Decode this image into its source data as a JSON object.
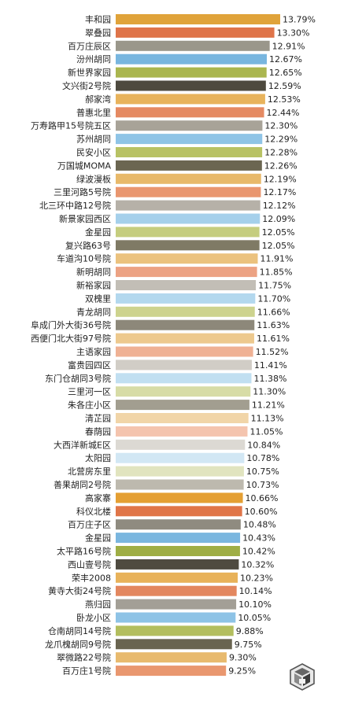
{
  "chart_data": {
    "type": "bar",
    "orientation": "horizontal",
    "categories": [
      "丰和园",
      "翠叠园",
      "百万庄辰区",
      "汾州胡同",
      "新世界家园",
      "文兴街2号院",
      "郝家湾",
      "普惠北里",
      "万寿路甲15号院五区",
      "苏州胡同",
      "民安小区",
      "万国城MOMA",
      "绿波漫板",
      "三里河路5号院",
      "北三环中路12号院",
      "新景家园西区",
      "金星园",
      "复兴路63号",
      "车道沟10号院",
      "新明胡同",
      "新裕家园",
      "双槐里",
      "青龙胡同",
      "阜成门外大街36号院",
      "西便门北大街97号院",
      "主语家园",
      "富贵园四区",
      "东门仓胡同3号院",
      "三里河一区",
      "朱各庄小区",
      "清芷园",
      "春荫园",
      "大西洋新城E区",
      "太阳园",
      "北营房东里",
      "善果胡同2号院",
      "高家寨",
      "科仪北楼",
      "百万庄子区",
      "金星园",
      "太平路16号院",
      "西山壹号院",
      "荣丰2008",
      "黄寺大街24号院",
      "燕归园",
      "卧龙小区",
      "仓南胡同14号院",
      "龙爪槐胡同9号院",
      "翠微路22号院",
      "百万庄1号院"
    ],
    "values": [
      13.79,
      13.3,
      12.91,
      12.67,
      12.65,
      12.59,
      12.53,
      12.44,
      12.3,
      12.29,
      12.28,
      12.26,
      12.19,
      12.17,
      12.12,
      12.09,
      12.05,
      12.05,
      11.91,
      11.85,
      11.75,
      11.7,
      11.66,
      11.63,
      11.61,
      11.52,
      11.41,
      11.38,
      11.3,
      11.21,
      11.13,
      11.05,
      10.84,
      10.78,
      10.75,
      10.73,
      10.66,
      10.6,
      10.48,
      10.43,
      10.42,
      10.32,
      10.23,
      10.14,
      10.1,
      10.05,
      9.88,
      9.75,
      9.3,
      9.25
    ],
    "labels": [
      "13.79%",
      "13.30%",
      "12.91%",
      "12.67%",
      "12.65%",
      "12.59%",
      "12.53%",
      "12.44%",
      "12.30%",
      "12.29%",
      "12.28%",
      "12.26%",
      "12.19%",
      "12.17%",
      "12.12%",
      "12.09%",
      "12.05%",
      "12.05%",
      "11.91%",
      "11.85%",
      "11.75%",
      "11.70%",
      "11.66%",
      "11.63%",
      "11.61%",
      "11.52%",
      "11.41%",
      "11.38%",
      "11.30%",
      "11.21%",
      "11.13%",
      "11.05%",
      "10.84%",
      "10.78%",
      "10.75%",
      "10.73%",
      "10.66%",
      "10.60%",
      "10.48%",
      "10.43%",
      "10.42%",
      "10.32%",
      "10.23%",
      "10.14%",
      "10.10%",
      "10.05%",
      "9.88%",
      "9.75%",
      "9.30%",
      "9.25%"
    ],
    "colors": [
      "#E0A33A",
      "#DF7449",
      "#9A978B",
      "#78B6DF",
      "#AAB64F",
      "#4E4A3F",
      "#E8B35C",
      "#E58A62",
      "#A8A398",
      "#8FC4E6",
      "#B8C264",
      "#6B6651",
      "#E8B96A",
      "#E9966F",
      "#B6B1A8",
      "#A5D0EB",
      "#C5CD7E",
      "#7F7A65",
      "#EBC27E",
      "#ECA283",
      "#C2BEB6",
      "#B3D8EE",
      "#CDD38E",
      "#8D887A",
      "#EDC98E",
      "#EFB194",
      "#D1CDC6",
      "#C1DFF1",
      "#D7DCA6",
      "#A29E90",
      "#F1D5A8",
      "#F4C4AE",
      "#DCD9D3",
      "#D2E7F4",
      "#E1E4BF",
      "#BDB9AE",
      "#E49F33",
      "#E07548",
      "#8F8B80",
      "#7AB6DF",
      "#9FAE45",
      "#4F4B40",
      "#E8B25A",
      "#E3875F",
      "#A39F96",
      "#8EC3E6",
      "#B3BE5E",
      "#696450",
      "#E8BA6E",
      "#E9976F"
    ],
    "xlim": [
      0,
      13.79
    ],
    "title": "",
    "xlabel": "",
    "ylabel": ""
  }
}
